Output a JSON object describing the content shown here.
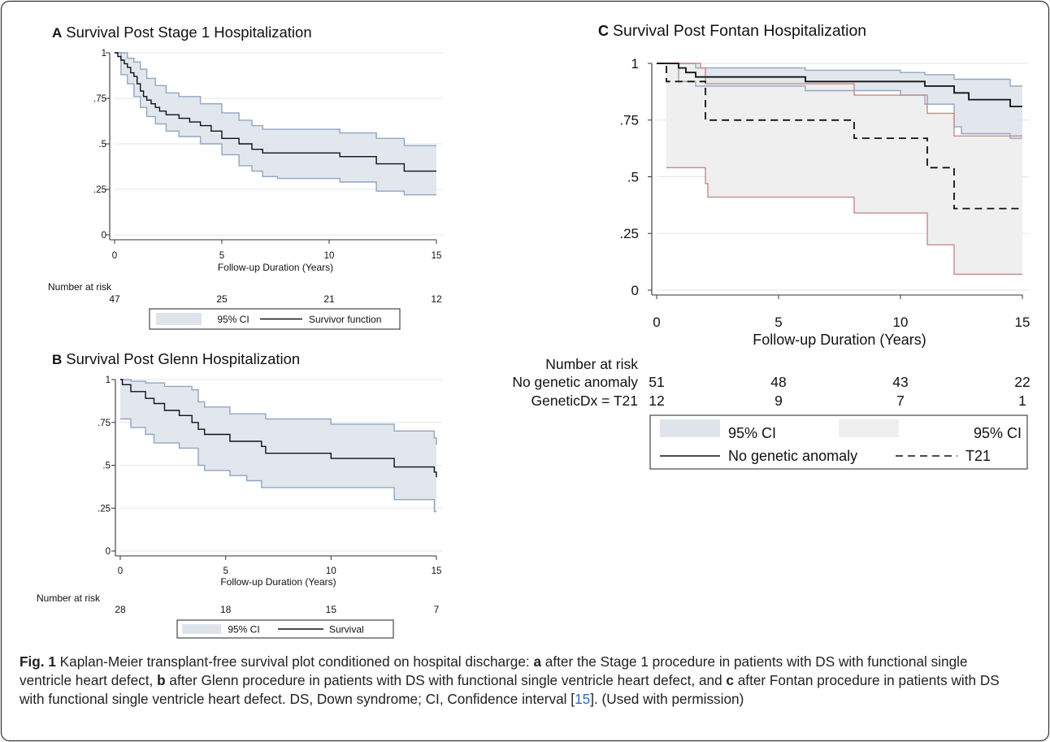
{
  "colors": {
    "ci_fill_main": "#dfe4ec",
    "ci_fill_t21": "#efefef",
    "ci_edge_main": "#8fa6c2",
    "ci_edge_t21": "#c9898b",
    "line": "#111111",
    "axis": "#333333",
    "grid": "#e6e6e6",
    "frame": "#333333",
    "ref_link": "#2a6ebb"
  },
  "caption": {
    "fig_label": "Fig. 1",
    "p1": " Kaplan-Meier transplant-free survival plot conditioned on hospital discharge: ",
    "a": "a",
    "p2": " after the Stage 1 procedure in patients with DS with functional single ventricle heart defect, ",
    "b": "b",
    "p3": " after Glenn procedure in patients with DS with functional single ventricle heart defect, and ",
    "c": "c",
    "p4": " after Fontan procedure in patients with DS with functional single ventricle heart defect. DS, Down syndrome; CI, Confidence interval [",
    "ref": "15",
    "p5": "]. (Used with permission)"
  },
  "chart_data": [
    {
      "panel_letter": "A",
      "type": "line",
      "title": "Survival Post Stage 1 Hospitalization",
      "xlabel": "Follow-up Duration (Years)",
      "ylabel": "",
      "xlim": [
        0,
        15
      ],
      "ylim": [
        0,
        1
      ],
      "xticks": [
        0,
        5,
        10,
        15
      ],
      "yticks": [
        0,
        0.25,
        0.5,
        0.75,
        1
      ],
      "ytick_labels": [
        "0",
        ".25",
        ".5",
        ".75",
        "1"
      ],
      "grid": true,
      "risk_table": {
        "label": "Number at risk",
        "rows": [
          {
            "name": "",
            "values": [
              "47",
              "25",
              "21",
              "12"
            ]
          }
        ]
      },
      "legend": {
        "placement": "bottom",
        "entries": [
          {
            "label": "95% CI",
            "kind": "fill"
          },
          {
            "label": "Survivor function",
            "kind": "solid"
          }
        ]
      },
      "series": [
        {
          "name": "Survivor function",
          "style": "solid",
          "steps": [
            [
              0,
              1
            ],
            [
              0.15,
              0.98
            ],
            [
              0.3,
              0.96
            ],
            [
              0.45,
              0.94
            ],
            [
              0.6,
              0.92
            ],
            [
              0.75,
              0.89
            ],
            [
              0.9,
              0.87
            ],
            [
              1.05,
              0.83
            ],
            [
              1.2,
              0.79
            ],
            [
              1.35,
              0.76
            ],
            [
              1.5,
              0.74
            ],
            [
              1.7,
              0.72
            ],
            [
              1.9,
              0.7
            ],
            [
              2.1,
              0.68
            ],
            [
              2.4,
              0.66
            ],
            [
              3.0,
              0.64
            ],
            [
              3.5,
              0.62
            ],
            [
              4.0,
              0.6
            ],
            [
              4.5,
              0.57
            ],
            [
              5.0,
              0.53
            ],
            [
              5.8,
              0.5
            ],
            [
              6.4,
              0.47
            ],
            [
              6.9,
              0.45
            ],
            [
              7.6,
              0.45
            ],
            [
              9.3,
              0.45
            ],
            [
              10.5,
              0.43
            ],
            [
              12.1,
              0.43
            ],
            [
              12.2,
              0.39
            ],
            [
              13.5,
              0.35
            ],
            [
              15,
              0.35
            ]
          ],
          "ci_lower": [
            [
              0,
              1
            ],
            [
              0.3,
              0.88
            ],
            [
              0.6,
              0.83
            ],
            [
              0.9,
              0.76
            ],
            [
              1.2,
              0.7
            ],
            [
              1.5,
              0.65
            ],
            [
              1.9,
              0.61
            ],
            [
              2.4,
              0.57
            ],
            [
              3.0,
              0.54
            ],
            [
              4.0,
              0.5
            ],
            [
              5.0,
              0.44
            ],
            [
              5.8,
              0.38
            ],
            [
              6.4,
              0.35
            ],
            [
              6.9,
              0.32
            ],
            [
              7.6,
              0.31
            ],
            [
              9.3,
              0.31
            ],
            [
              10.5,
              0.29
            ],
            [
              12.2,
              0.24
            ],
            [
              13.5,
              0.22
            ],
            [
              15,
              0.22
            ]
          ],
          "ci_upper": [
            [
              0,
              1
            ],
            [
              0.3,
              1
            ],
            [
              0.6,
              0.97
            ],
            [
              0.9,
              0.95
            ],
            [
              1.2,
              0.91
            ],
            [
              1.5,
              0.86
            ],
            [
              1.9,
              0.82
            ],
            [
              2.4,
              0.78
            ],
            [
              3.0,
              0.76
            ],
            [
              4.0,
              0.72
            ],
            [
              5.0,
              0.67
            ],
            [
              5.8,
              0.63
            ],
            [
              6.4,
              0.6
            ],
            [
              6.9,
              0.58
            ],
            [
              7.6,
              0.58
            ],
            [
              9.3,
              0.58
            ],
            [
              10.5,
              0.56
            ],
            [
              12.2,
              0.53
            ],
            [
              13.5,
              0.49
            ],
            [
              15,
              0.49
            ]
          ]
        }
      ]
    },
    {
      "panel_letter": "B",
      "type": "line",
      "title": "Survival Post Glenn Hospitalization",
      "xlabel": "Follow-up Duration (Years)",
      "ylabel": "",
      "xlim": [
        0,
        15
      ],
      "ylim": [
        0,
        1
      ],
      "xticks": [
        0,
        5,
        10,
        15
      ],
      "yticks": [
        0,
        0.25,
        0.5,
        0.75,
        1
      ],
      "ytick_labels": [
        "0",
        ".25",
        ".5",
        ".75",
        "1"
      ],
      "grid": true,
      "risk_table": {
        "label": "Number at risk",
        "rows": [
          {
            "name": "",
            "values": [
              "28",
              "18",
              "15",
              "7"
            ]
          }
        ]
      },
      "legend": {
        "placement": "bottom",
        "entries": [
          {
            "label": "95% CI",
            "kind": "fill"
          },
          {
            "label": "Survival",
            "kind": "solid"
          }
        ]
      },
      "series": [
        {
          "name": "Survival",
          "style": "solid",
          "steps": [
            [
              0,
              1
            ],
            [
              0.1,
              0.97
            ],
            [
              0.5,
              0.93
            ],
            [
              1.2,
              0.89
            ],
            [
              1.6,
              0.86
            ],
            [
              2.1,
              0.82
            ],
            [
              2.8,
              0.79
            ],
            [
              3.4,
              0.75
            ],
            [
              3.7,
              0.71
            ],
            [
              4.0,
              0.68
            ],
            [
              5.2,
              0.64
            ],
            [
              6.7,
              0.61
            ],
            [
              6.9,
              0.57
            ],
            [
              10.0,
              0.54
            ],
            [
              13.0,
              0.49
            ],
            [
              14.9,
              0.46
            ],
            [
              15,
              0.43
            ]
          ],
          "ci_lower": [
            [
              0,
              0.77
            ],
            [
              0.5,
              0.72
            ],
            [
              1.2,
              0.68
            ],
            [
              1.6,
              0.63
            ],
            [
              2.8,
              0.6
            ],
            [
              3.7,
              0.5
            ],
            [
              4.0,
              0.47
            ],
            [
              5.2,
              0.44
            ],
            [
              6.0,
              0.41
            ],
            [
              6.7,
              0.37
            ],
            [
              13.0,
              0.3
            ],
            [
              14.9,
              0.23
            ],
            [
              15,
              0.23
            ]
          ],
          "ci_upper": [
            [
              0,
              1
            ],
            [
              0.5,
              0.99
            ],
            [
              1.2,
              0.98
            ],
            [
              2.1,
              0.96
            ],
            [
              3.4,
              0.94
            ],
            [
              3.7,
              0.87
            ],
            [
              4.0,
              0.84
            ],
            [
              5.2,
              0.8
            ],
            [
              6.9,
              0.77
            ],
            [
              10.0,
              0.74
            ],
            [
              13.0,
              0.7
            ],
            [
              14.9,
              0.66
            ],
            [
              15,
              0.62
            ]
          ]
        }
      ]
    },
    {
      "panel_letter": "C",
      "type": "line",
      "title": "Survival Post Fontan Hospitalization",
      "xlabel": "Follow-up Duration (Years)",
      "ylabel": "",
      "xlim": [
        0,
        15
      ],
      "ylim": [
        0,
        1
      ],
      "xticks": [
        0,
        5,
        10,
        15
      ],
      "yticks": [
        0,
        0.25,
        0.5,
        0.75,
        1
      ],
      "ytick_labels": [
        "0",
        ".25",
        ".5",
        ".75",
        "1"
      ],
      "grid": true,
      "risk_table": {
        "label": "Number at risk",
        "rows": [
          {
            "name": "No genetic anomaly",
            "values": [
              "51",
              "48",
              "43",
              "22"
            ]
          },
          {
            "name": "GeneticDx = T21",
            "values": [
              "12",
              "9",
              "7",
              "1"
            ]
          }
        ]
      },
      "legend": {
        "placement": "bottom",
        "entries": [
          {
            "label": "95% CI",
            "kind": "fill-main"
          },
          {
            "label": "95% CI",
            "kind": "fill-t21"
          },
          {
            "label": "No genetic anomaly",
            "kind": "solid"
          },
          {
            "label": "T21",
            "kind": "dashed"
          }
        ]
      },
      "series": [
        {
          "name": "No genetic anomaly",
          "style": "solid",
          "steps": [
            [
              0,
              1
            ],
            [
              0.9,
              0.98
            ],
            [
              1.2,
              0.96
            ],
            [
              1.6,
              0.94
            ],
            [
              6.0,
              0.94
            ],
            [
              6.1,
              0.92
            ],
            [
              10.0,
              0.92
            ],
            [
              11.0,
              0.9
            ],
            [
              12.2,
              0.87
            ],
            [
              12.8,
              0.84
            ],
            [
              14.5,
              0.81
            ],
            [
              15,
              0.81
            ]
          ],
          "ci_lower": [
            [
              0,
              1
            ],
            [
              0.9,
              0.92
            ],
            [
              1.6,
              0.9
            ],
            [
              6.1,
              0.88
            ],
            [
              10.0,
              0.86
            ],
            [
              11.0,
              0.82
            ],
            [
              12.2,
              0.72
            ],
            [
              12.5,
              0.69
            ],
            [
              14.5,
              0.67
            ],
            [
              15,
              0.67
            ]
          ],
          "ci_upper": [
            [
              0,
              1
            ],
            [
              0.9,
              1
            ],
            [
              1.6,
              0.98
            ],
            [
              6.1,
              0.97
            ],
            [
              10.0,
              0.96
            ],
            [
              11.0,
              0.95
            ],
            [
              12.2,
              0.93
            ],
            [
              14.5,
              0.9
            ],
            [
              15,
              0.9
            ]
          ]
        },
        {
          "name": "T21",
          "style": "dashed",
          "steps": [
            [
              0,
              1
            ],
            [
              0.4,
              0.92
            ],
            [
              1.9,
              0.92
            ],
            [
              2.0,
              0.75
            ],
            [
              8.0,
              0.75
            ],
            [
              8.1,
              0.67
            ],
            [
              11.0,
              0.67
            ],
            [
              11.1,
              0.54
            ],
            [
              12.1,
              0.54
            ],
            [
              12.2,
              0.36
            ],
            [
              15,
              0.36
            ]
          ],
          "ci_lower": [
            [
              0.4,
              0.54
            ],
            [
              1.8,
              0.54
            ],
            [
              2.0,
              0.47
            ],
            [
              2.1,
              0.41
            ],
            [
              8.0,
              0.41
            ],
            [
              8.1,
              0.34
            ],
            [
              11.0,
              0.34
            ],
            [
              11.1,
              0.2
            ],
            [
              12.1,
              0.2
            ],
            [
              12.2,
              0.07
            ],
            [
              15,
              0.07
            ]
          ],
          "ci_upper": [
            [
              0.4,
              1
            ],
            [
              1.8,
              0.98
            ],
            [
              2.0,
              0.91
            ],
            [
              8.0,
              0.91
            ],
            [
              8.1,
              0.86
            ],
            [
              11.0,
              0.86
            ],
            [
              11.1,
              0.78
            ],
            [
              12.1,
              0.78
            ],
            [
              12.2,
              0.68
            ],
            [
              15,
              0.68
            ]
          ]
        }
      ]
    }
  ]
}
